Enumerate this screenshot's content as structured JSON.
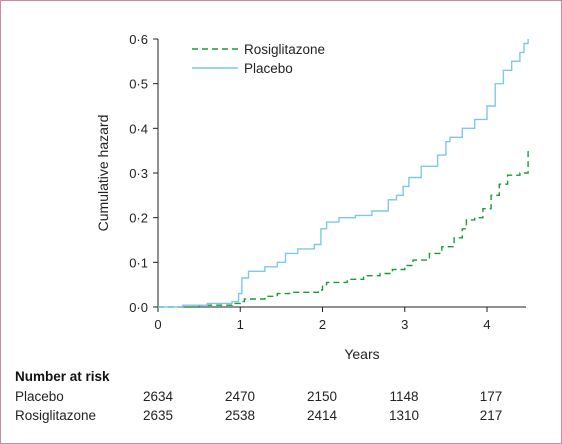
{
  "chart_data": {
    "type": "line",
    "xlabel": "Years",
    "ylabel": "Cumulative hazard",
    "xlim": [
      0,
      4.6
    ],
    "ylim": [
      0,
      0.6
    ],
    "x_ticks": [
      "0",
      "1",
      "2",
      "3",
      "4"
    ],
    "y_ticks": [
      "0·0",
      "0·1",
      "0·2",
      "0·3",
      "0·4",
      "0·5",
      "0·6"
    ],
    "grid": false,
    "legend_position": "top-left",
    "series": [
      {
        "name": "Rosiglitazone",
        "color": "#1a9a3a",
        "dash": "dashed",
        "x": [
          0,
          0.5,
          0.9,
          1.0,
          1.05,
          1.3,
          1.45,
          1.6,
          1.95,
          2.0,
          2.05,
          2.3,
          2.5,
          2.7,
          2.85,
          3.0,
          3.1,
          3.3,
          3.45,
          3.6,
          3.7,
          3.75,
          3.85,
          3.95,
          4.05,
          4.15,
          4.25,
          4.4,
          4.5
        ],
        "y": [
          0,
          0.004,
          0.008,
          0.012,
          0.018,
          0.024,
          0.03,
          0.033,
          0.038,
          0.05,
          0.055,
          0.062,
          0.07,
          0.075,
          0.084,
          0.093,
          0.105,
          0.12,
          0.135,
          0.155,
          0.175,
          0.195,
          0.2,
          0.22,
          0.25,
          0.275,
          0.295,
          0.3,
          0.35
        ]
      },
      {
        "name": "Placebo",
        "color": "#7fc8e6",
        "dash": "solid",
        "x": [
          0,
          0.3,
          0.6,
          0.9,
          0.98,
          1.02,
          1.1,
          1.3,
          1.45,
          1.55,
          1.7,
          1.9,
          1.98,
          2.05,
          2.2,
          2.4,
          2.6,
          2.8,
          2.9,
          2.98,
          3.05,
          3.2,
          3.4,
          3.5,
          3.55,
          3.7,
          3.85,
          4.0,
          4.1,
          4.2,
          4.3,
          4.4,
          4.45,
          4.5
        ],
        "y": [
          0,
          0.004,
          0.008,
          0.012,
          0.03,
          0.065,
          0.08,
          0.09,
          0.1,
          0.12,
          0.13,
          0.14,
          0.175,
          0.19,
          0.2,
          0.205,
          0.215,
          0.24,
          0.25,
          0.27,
          0.29,
          0.315,
          0.34,
          0.37,
          0.38,
          0.4,
          0.42,
          0.45,
          0.5,
          0.53,
          0.55,
          0.57,
          0.59,
          0.6
        ]
      }
    ]
  },
  "risk_table": {
    "title": "Number at risk",
    "rows": [
      {
        "label": "Placebo",
        "values": [
          "2634",
          "2470",
          "2150",
          "1148",
          "177"
        ]
      },
      {
        "label": "Rosiglitazone",
        "values": [
          "2635",
          "2538",
          "2414",
          "1310",
          "217"
        ]
      }
    ]
  }
}
